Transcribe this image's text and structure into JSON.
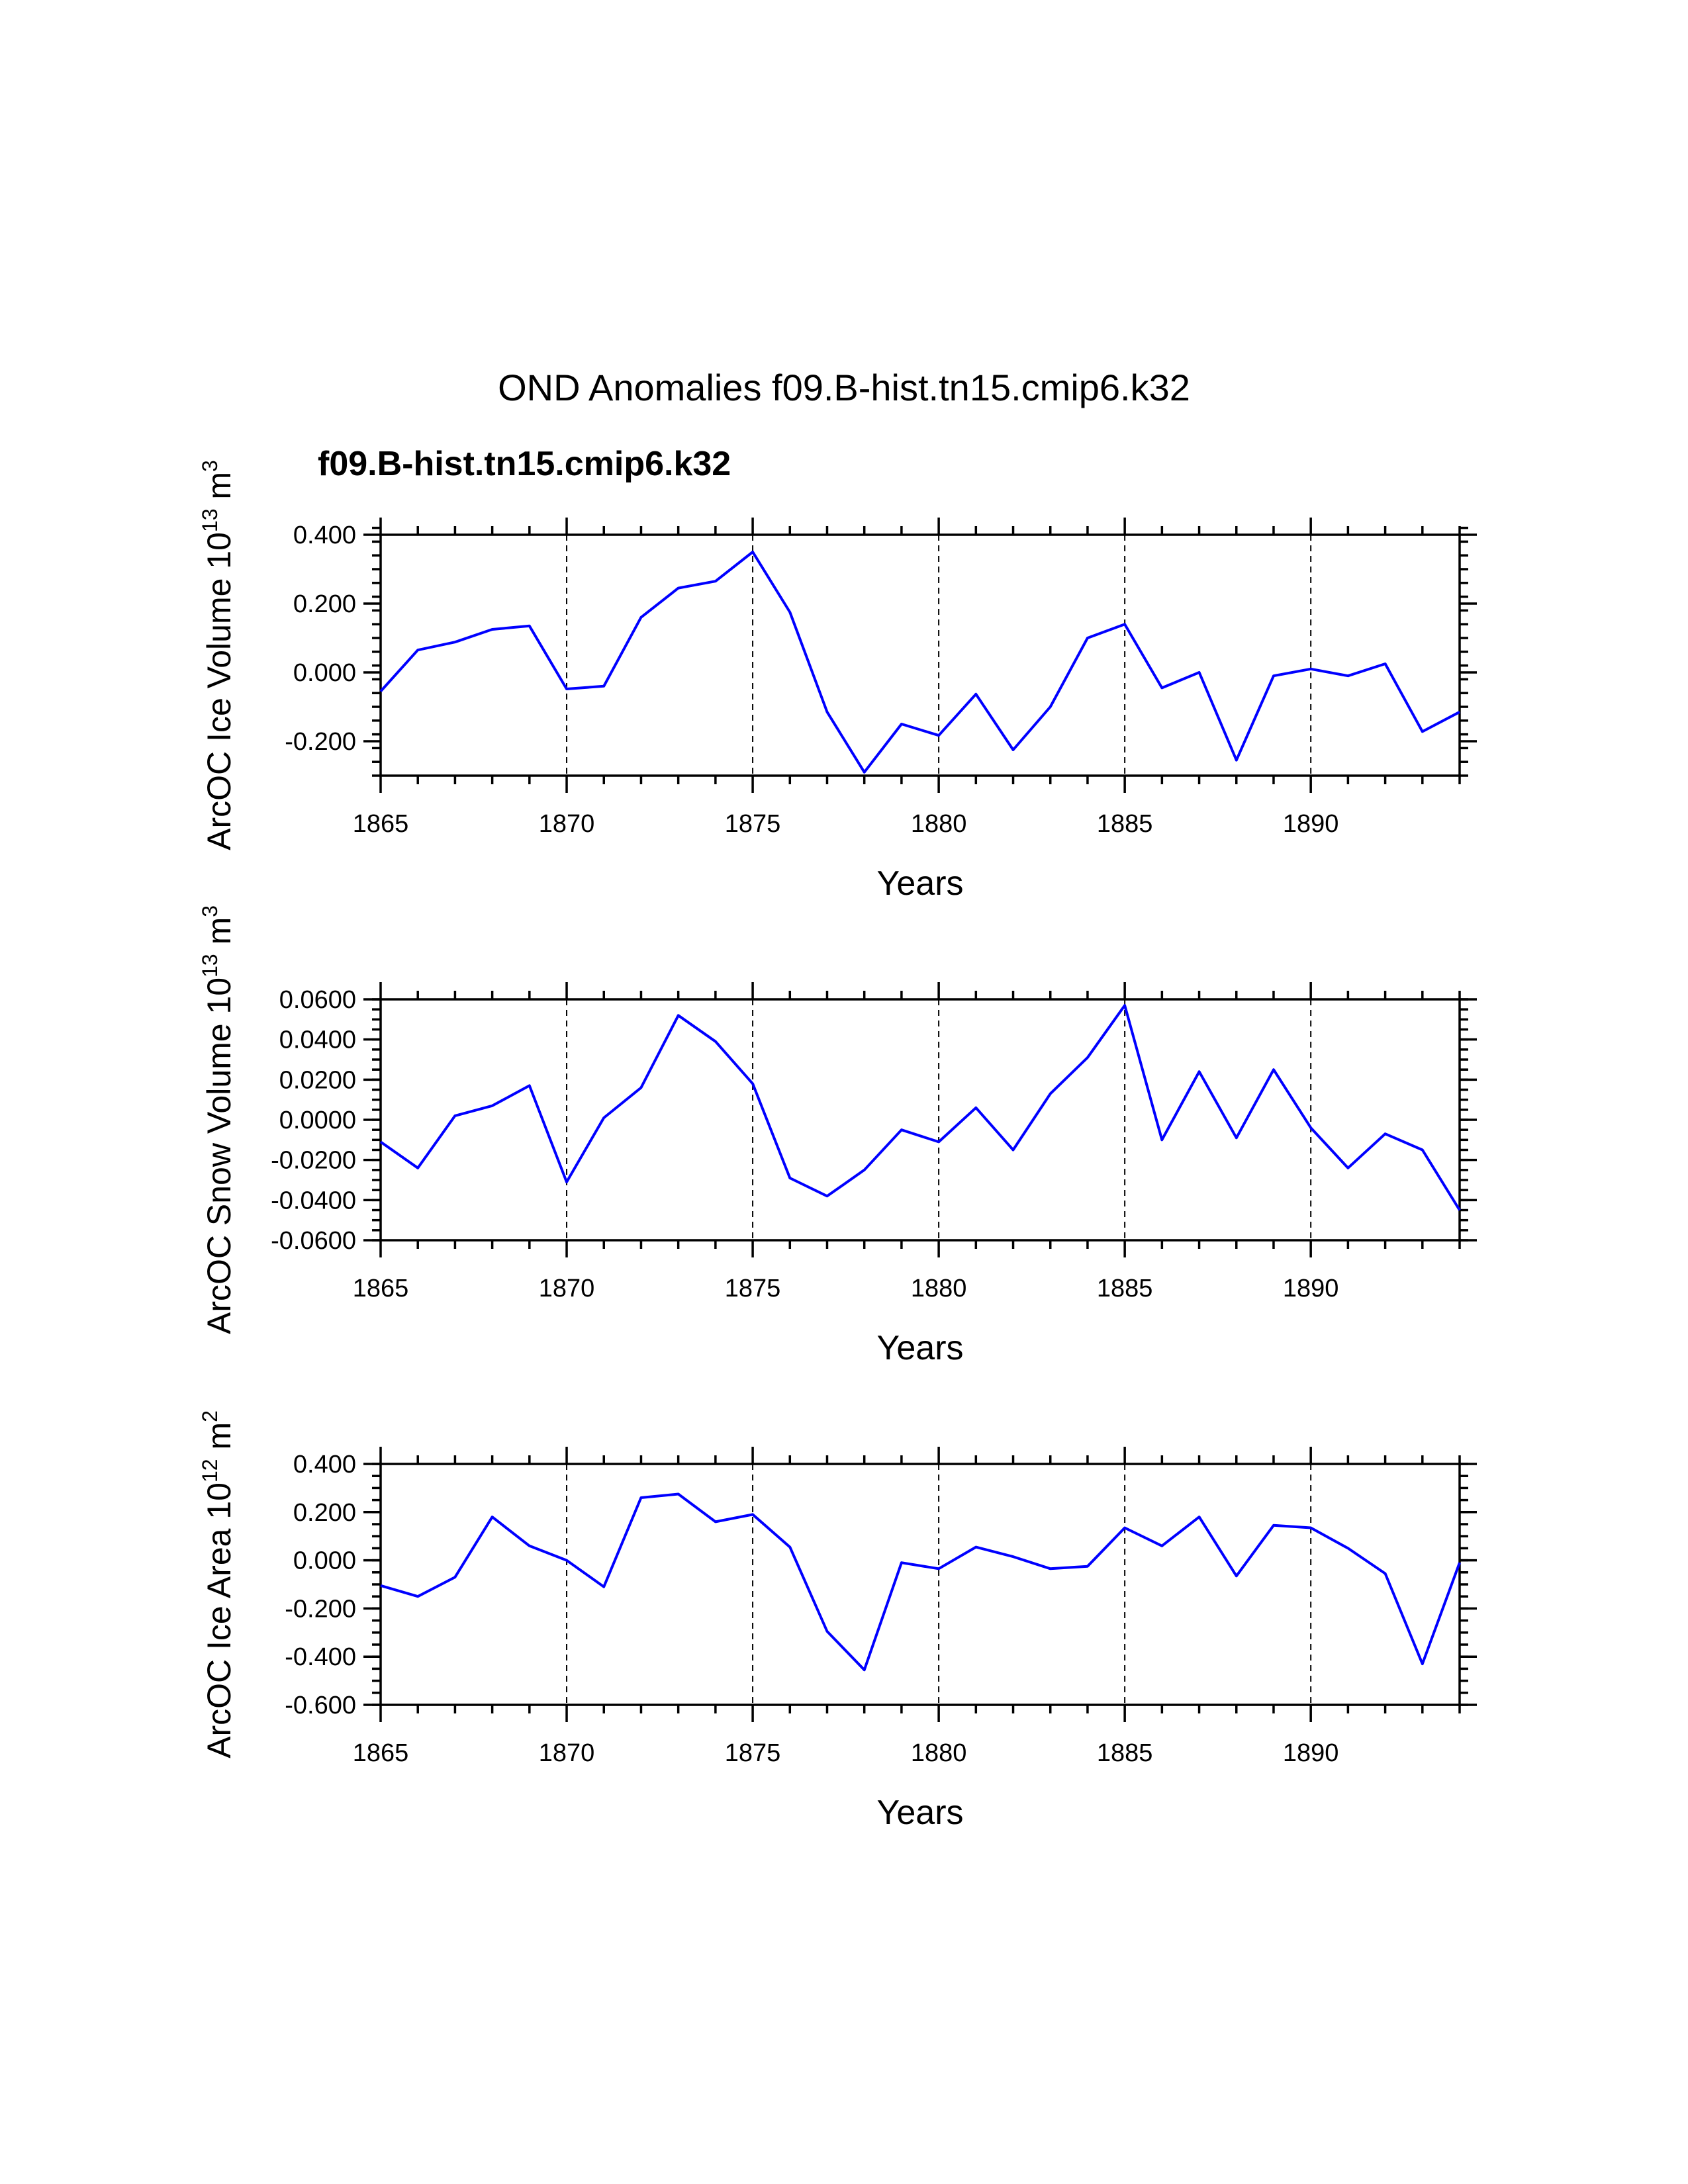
{
  "title": "OND Anomalies f09.B-hist.tn15.cmip6.k32",
  "case_label": "f09.B-hist.tn15.cmip6.k32",
  "colors": {
    "series": "#0000ff",
    "case_label": "#0000ff",
    "axes": "#000000"
  },
  "chart_data": [
    {
      "type": "line",
      "ylabel": {
        "text": "ArcOC Ice Volume 10",
        "exp": "13",
        "unit": " m",
        "unit_exp": "3"
      },
      "xlabel": "Years",
      "xlim": [
        1865,
        1894
      ],
      "ylim": [
        -0.3,
        0.4
      ],
      "xticks": [
        1865,
        1870,
        1875,
        1880,
        1885,
        1890
      ],
      "xtick_labels": [
        "1865",
        "1870",
        "1875",
        "1880",
        "1885",
        "1890"
      ],
      "yticks": [
        0.4,
        0.2,
        0.0,
        -0.2
      ],
      "ytick_labels": [
        "0.400",
        "0.200",
        "0.000",
        "-0.200"
      ],
      "y_minor_step": 0.04,
      "series": [
        {
          "name": "f09.B-hist.tn15.cmip6.k32",
          "x": [
            1865,
            1866,
            1867,
            1868,
            1869,
            1870,
            1871,
            1872,
            1873,
            1874,
            1875,
            1876,
            1877,
            1878,
            1879,
            1880,
            1881,
            1882,
            1883,
            1884,
            1885,
            1886,
            1887,
            1888,
            1889,
            1890,
            1891,
            1892,
            1893,
            1894
          ],
          "values": [
            -0.055,
            0.065,
            0.088,
            0.125,
            0.135,
            -0.048,
            -0.04,
            0.16,
            0.245,
            0.265,
            0.35,
            0.175,
            -0.115,
            -0.29,
            -0.15,
            -0.183,
            -0.063,
            -0.225,
            -0.1,
            0.1,
            0.14,
            -0.045,
            0.0,
            -0.255,
            -0.01,
            0.01,
            -0.01,
            0.025,
            -0.172,
            -0.115
          ]
        }
      ]
    },
    {
      "type": "line",
      "ylabel": {
        "text": "ArcOC Snow Volume 10",
        "exp": "13",
        "unit": " m",
        "unit_exp": "3"
      },
      "xlabel": "Years",
      "xlim": [
        1865,
        1894
      ],
      "ylim": [
        -0.06,
        0.06
      ],
      "xticks": [
        1865,
        1870,
        1875,
        1880,
        1885,
        1890
      ],
      "xtick_labels": [
        "1865",
        "1870",
        "1875",
        "1880",
        "1885",
        "1890"
      ],
      "yticks": [
        0.06,
        0.04,
        0.02,
        0.0,
        -0.02,
        -0.04,
        -0.06
      ],
      "ytick_labels": [
        "0.0600",
        "0.0400",
        "0.0200",
        "0.0000",
        "-0.0200",
        "-0.0400",
        "-0.0600"
      ],
      "y_minor_step": 0.005,
      "series": [
        {
          "name": "f09.B-hist.tn15.cmip6.k32",
          "x": [
            1865,
            1866,
            1867,
            1868,
            1869,
            1870,
            1871,
            1872,
            1873,
            1874,
            1875,
            1876,
            1877,
            1878,
            1879,
            1880,
            1881,
            1882,
            1883,
            1884,
            1885,
            1886,
            1887,
            1888,
            1889,
            1890,
            1891,
            1892,
            1893,
            1894
          ],
          "values": [
            -0.011,
            -0.024,
            0.002,
            0.007,
            0.017,
            -0.031,
            0.001,
            0.016,
            0.052,
            0.039,
            0.018,
            -0.029,
            -0.038,
            -0.025,
            -0.005,
            -0.011,
            0.006,
            -0.015,
            0.013,
            0.031,
            0.057,
            -0.01,
            0.024,
            -0.009,
            0.025,
            -0.004,
            -0.024,
            -0.007,
            -0.015,
            -0.045
          ]
        }
      ]
    },
    {
      "type": "line",
      "ylabel": {
        "text": "ArcOC Ice Area 10",
        "exp": "12",
        "unit": " m",
        "unit_exp": "2"
      },
      "xlabel": "Years",
      "xlim": [
        1865,
        1894
      ],
      "ylim": [
        -0.6,
        0.4
      ],
      "xticks": [
        1865,
        1870,
        1875,
        1880,
        1885,
        1890
      ],
      "xtick_labels": [
        "1865",
        "1870",
        "1875",
        "1880",
        "1885",
        "1890"
      ],
      "yticks": [
        0.4,
        0.2,
        0.0,
        -0.2,
        -0.4,
        -0.6
      ],
      "ytick_labels": [
        "0.400",
        "0.200",
        "0.000",
        "-0.200",
        "-0.400",
        "-0.600"
      ],
      "y_minor_step": 0.05,
      "series": [
        {
          "name": "f09.B-hist.tn15.cmip6.k32",
          "x": [
            1865,
            1866,
            1867,
            1868,
            1869,
            1870,
            1871,
            1872,
            1873,
            1874,
            1875,
            1876,
            1877,
            1878,
            1879,
            1880,
            1881,
            1882,
            1883,
            1884,
            1885,
            1886,
            1887,
            1888,
            1889,
            1890,
            1891,
            1892,
            1893,
            1894
          ],
          "values": [
            -0.105,
            -0.15,
            -0.07,
            0.18,
            0.06,
            0.0,
            -0.11,
            0.26,
            0.275,
            0.16,
            0.19,
            0.055,
            -0.295,
            -0.455,
            -0.01,
            -0.035,
            0.055,
            0.015,
            -0.035,
            -0.025,
            0.135,
            0.06,
            0.18,
            -0.065,
            0.145,
            0.135,
            0.05,
            -0.055,
            -0.43,
            -0.01
          ]
        }
      ]
    }
  ]
}
